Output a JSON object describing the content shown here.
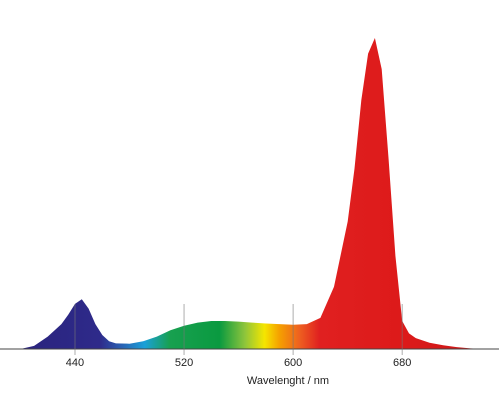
{
  "chart_data": {
    "type": "area",
    "x_label": "Wavelenght / nm",
    "x": [
      400,
      410,
      420,
      430,
      435,
      440,
      445,
      450,
      455,
      460,
      465,
      470,
      480,
      490,
      500,
      510,
      520,
      530,
      540,
      550,
      560,
      570,
      580,
      590,
      600,
      610,
      620,
      630,
      640,
      645,
      650,
      655,
      660,
      665,
      670,
      675,
      680,
      685,
      690,
      700,
      710,
      720,
      730,
      740
    ],
    "values": [
      0.0,
      0.01,
      0.04,
      0.08,
      0.11,
      0.145,
      0.16,
      0.13,
      0.08,
      0.045,
      0.025,
      0.018,
      0.017,
      0.025,
      0.04,
      0.06,
      0.075,
      0.085,
      0.09,
      0.09,
      0.088,
      0.085,
      0.082,
      0.08,
      0.078,
      0.08,
      0.1,
      0.2,
      0.41,
      0.58,
      0.8,
      0.95,
      1.0,
      0.9,
      0.61,
      0.3,
      0.09,
      0.05,
      0.035,
      0.02,
      0.012,
      0.006,
      0.002,
      0.0
    ],
    "xlim": [
      385,
      751
    ],
    "xticks": [
      440,
      520,
      600,
      680
    ],
    "ylim": [
      0,
      1
    ]
  }
}
